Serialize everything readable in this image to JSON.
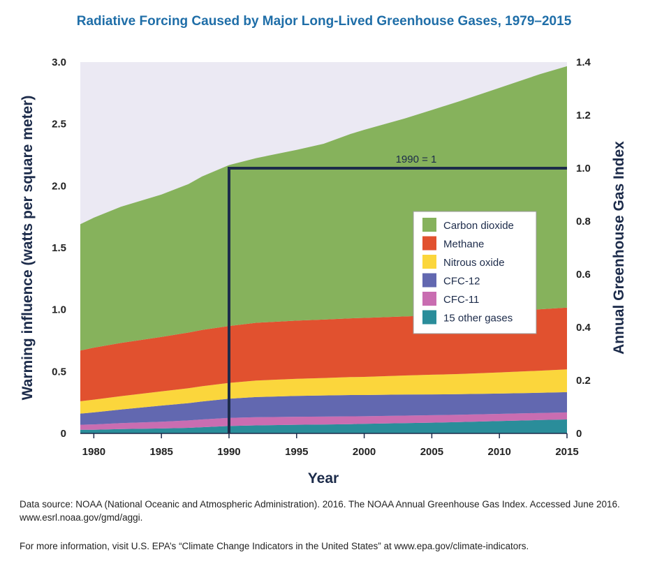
{
  "chart_data": {
    "type": "area",
    "title": "Radiative Forcing Caused by Major Long-Lived Greenhouse Gases, 1979–2015",
    "xlabel": "Year",
    "ylabel": "Warming influence (watts per square meter)",
    "y2label": "Annual Greenhouse Gas Index",
    "xlim": [
      1979,
      2015
    ],
    "ylim": [
      0,
      3.0
    ],
    "y2lim": [
      0,
      1.4
    ],
    "x_ticks": [
      1980,
      1985,
      1990,
      1995,
      2000,
      2005,
      2010,
      2015
    ],
    "y_ticks": [
      "0",
      "0.5",
      "1.0",
      "1.5",
      "2.0",
      "2.5",
      "3.0"
    ],
    "y2_ticks": [
      "0",
      "0.2",
      "0.4",
      "0.6",
      "0.8",
      "1.0",
      "1.2",
      "1.4"
    ],
    "stacked": true,
    "legend_position": "right",
    "grid": false,
    "plot_background": "#ebe9f3",
    "x": [
      1979,
      1980,
      1982,
      1985,
      1987,
      1988,
      1990,
      1992,
      1995,
      1997,
      1999,
      2000,
      2003,
      2005,
      2007,
      2010,
      2013,
      2015
    ],
    "series": [
      {
        "name": "15 other gases",
        "color": "#2a8d9a",
        "values": [
          0.03,
          0.03,
          0.035,
          0.04,
          0.045,
          0.05,
          0.06,
          0.065,
          0.07,
          0.072,
          0.075,
          0.077,
          0.083,
          0.087,
          0.092,
          0.1,
          0.108,
          0.113
        ]
      },
      {
        "name": "CFC-11",
        "color": "#c96db1",
        "values": [
          0.04,
          0.043,
          0.048,
          0.055,
          0.06,
          0.063,
          0.065,
          0.066,
          0.065,
          0.064,
          0.063,
          0.062,
          0.061,
          0.06,
          0.059,
          0.058,
          0.057,
          0.057
        ]
      },
      {
        "name": "CFC-12",
        "color": "#6268b0",
        "values": [
          0.09,
          0.097,
          0.11,
          0.13,
          0.14,
          0.145,
          0.155,
          0.163,
          0.168,
          0.171,
          0.172,
          0.171,
          0.17,
          0.168,
          0.166,
          0.164,
          0.163,
          0.163
        ]
      },
      {
        "name": "Nitrous oxide",
        "color": "#fbd63c",
        "values": [
          0.1,
          0.103,
          0.108,
          0.115,
          0.12,
          0.123,
          0.128,
          0.133,
          0.138,
          0.141,
          0.145,
          0.147,
          0.154,
          0.159,
          0.163,
          0.171,
          0.179,
          0.184
        ]
      },
      {
        "name": "Methane",
        "color": "#e1512f",
        "values": [
          0.41,
          0.42,
          0.43,
          0.44,
          0.45,
          0.455,
          0.46,
          0.467,
          0.47,
          0.472,
          0.475,
          0.476,
          0.477,
          0.479,
          0.482,
          0.489,
          0.496,
          0.5
        ]
      },
      {
        "name": "Carbon dioxide",
        "color": "#86b25c",
        "values": [
          1.02,
          1.05,
          1.1,
          1.15,
          1.2,
          1.24,
          1.3,
          1.33,
          1.38,
          1.42,
          1.49,
          1.52,
          1.6,
          1.66,
          1.72,
          1.81,
          1.9,
          1.95
        ]
      }
    ],
    "annotation": {
      "label": "1990 = 1",
      "year": 1990,
      "index_value": 1.0
    }
  },
  "footer": {
    "source": "Data source: NOAA (National Oceanic and Atmospheric Administration). 2016. The NOAA Annual Greenhouse Gas Index. Accessed June 2016. www.esrl.noaa.gov/gmd/aggi.",
    "more_info": "For more information, visit U.S. EPA’s “Climate Change Indicators in the United States” at www.epa.gov/climate-indicators."
  }
}
